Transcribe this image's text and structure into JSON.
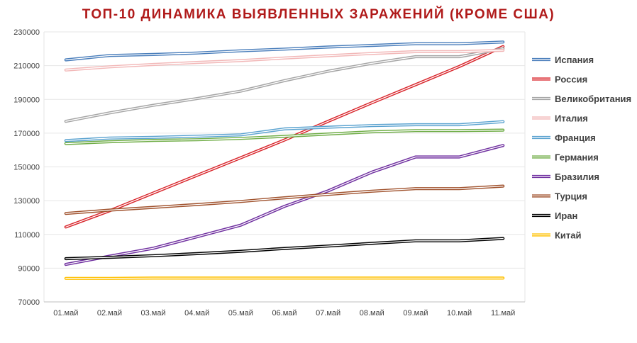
{
  "chart_data": {
    "type": "line",
    "title": "ТОП-10 ДИНАМИКА ВЫЯВЛЕННЫХ ЗАРАЖЕНИЙ (КРОМЕ США)",
    "xlabel": "",
    "ylabel": "",
    "categories": [
      "01.май",
      "02.май",
      "03.май",
      "04.май",
      "05.май",
      "06.май",
      "07.май",
      "08.май",
      "09.май",
      "10.май",
      "11.май"
    ],
    "ylim": [
      70000,
      230000
    ],
    "yticks": [
      70000,
      90000,
      110000,
      130000,
      150000,
      170000,
      190000,
      210000,
      230000
    ],
    "grid": true,
    "legend_position": "right",
    "series": [
      {
        "name": "Испания",
        "color": "#4a7ebb",
        "values": [
          213400,
          216000,
          216600,
          217500,
          218800,
          219800,
          221000,
          222000,
          223000,
          223000,
          224000
        ]
      },
      {
        "name": "Россия",
        "color": "#d9262c",
        "values": [
          114400,
          124000,
          134500,
          145000,
          155400,
          165900,
          177000,
          188000,
          198700,
          209500,
          221300
        ]
      },
      {
        "name": "Великобритания",
        "color": "#a5a5a5",
        "values": [
          177000,
          182000,
          186500,
          190500,
          194900,
          201100,
          206700,
          211400,
          215300,
          215300,
          220000
        ]
      },
      {
        "name": "Италия",
        "color": "#f2b8b8",
        "values": [
          207400,
          209300,
          210700,
          211900,
          213000,
          214500,
          215900,
          217200,
          218300,
          218300,
          219100
        ]
      },
      {
        "name": "Франция",
        "color": "#5ba3d0",
        "values": [
          165600,
          167100,
          167500,
          168200,
          169000,
          172500,
          173500,
          174500,
          175000,
          175000,
          176800
        ]
      },
      {
        "name": "Германия",
        "color": "#70ad47",
        "values": [
          163800,
          164900,
          165700,
          166100,
          166900,
          168100,
          169500,
          170800,
          171500,
          171500,
          171800
        ]
      },
      {
        "name": "Бразилия",
        "color": "#7030a0",
        "values": [
          92200,
          97100,
          101800,
          108600,
          115500,
          126600,
          135800,
          146900,
          155900,
          155900,
          162700
        ]
      },
      {
        "name": "Турция",
        "color": "#a0522d",
        "values": [
          122400,
          124400,
          126000,
          127700,
          129500,
          131700,
          133700,
          135600,
          137100,
          137100,
          138600
        ]
      },
      {
        "name": "Иран",
        "color": "#000000",
        "values": [
          95600,
          96400,
          97400,
          98600,
          99970,
          101650,
          103100,
          104700,
          106200,
          106200,
          107600
        ]
      },
      {
        "name": "Китай",
        "color": "#ffc000",
        "values": [
          83960,
          83960,
          84100,
          84100,
          84100,
          84100,
          84100,
          84100,
          84100,
          84100,
          84100
        ]
      }
    ]
  }
}
